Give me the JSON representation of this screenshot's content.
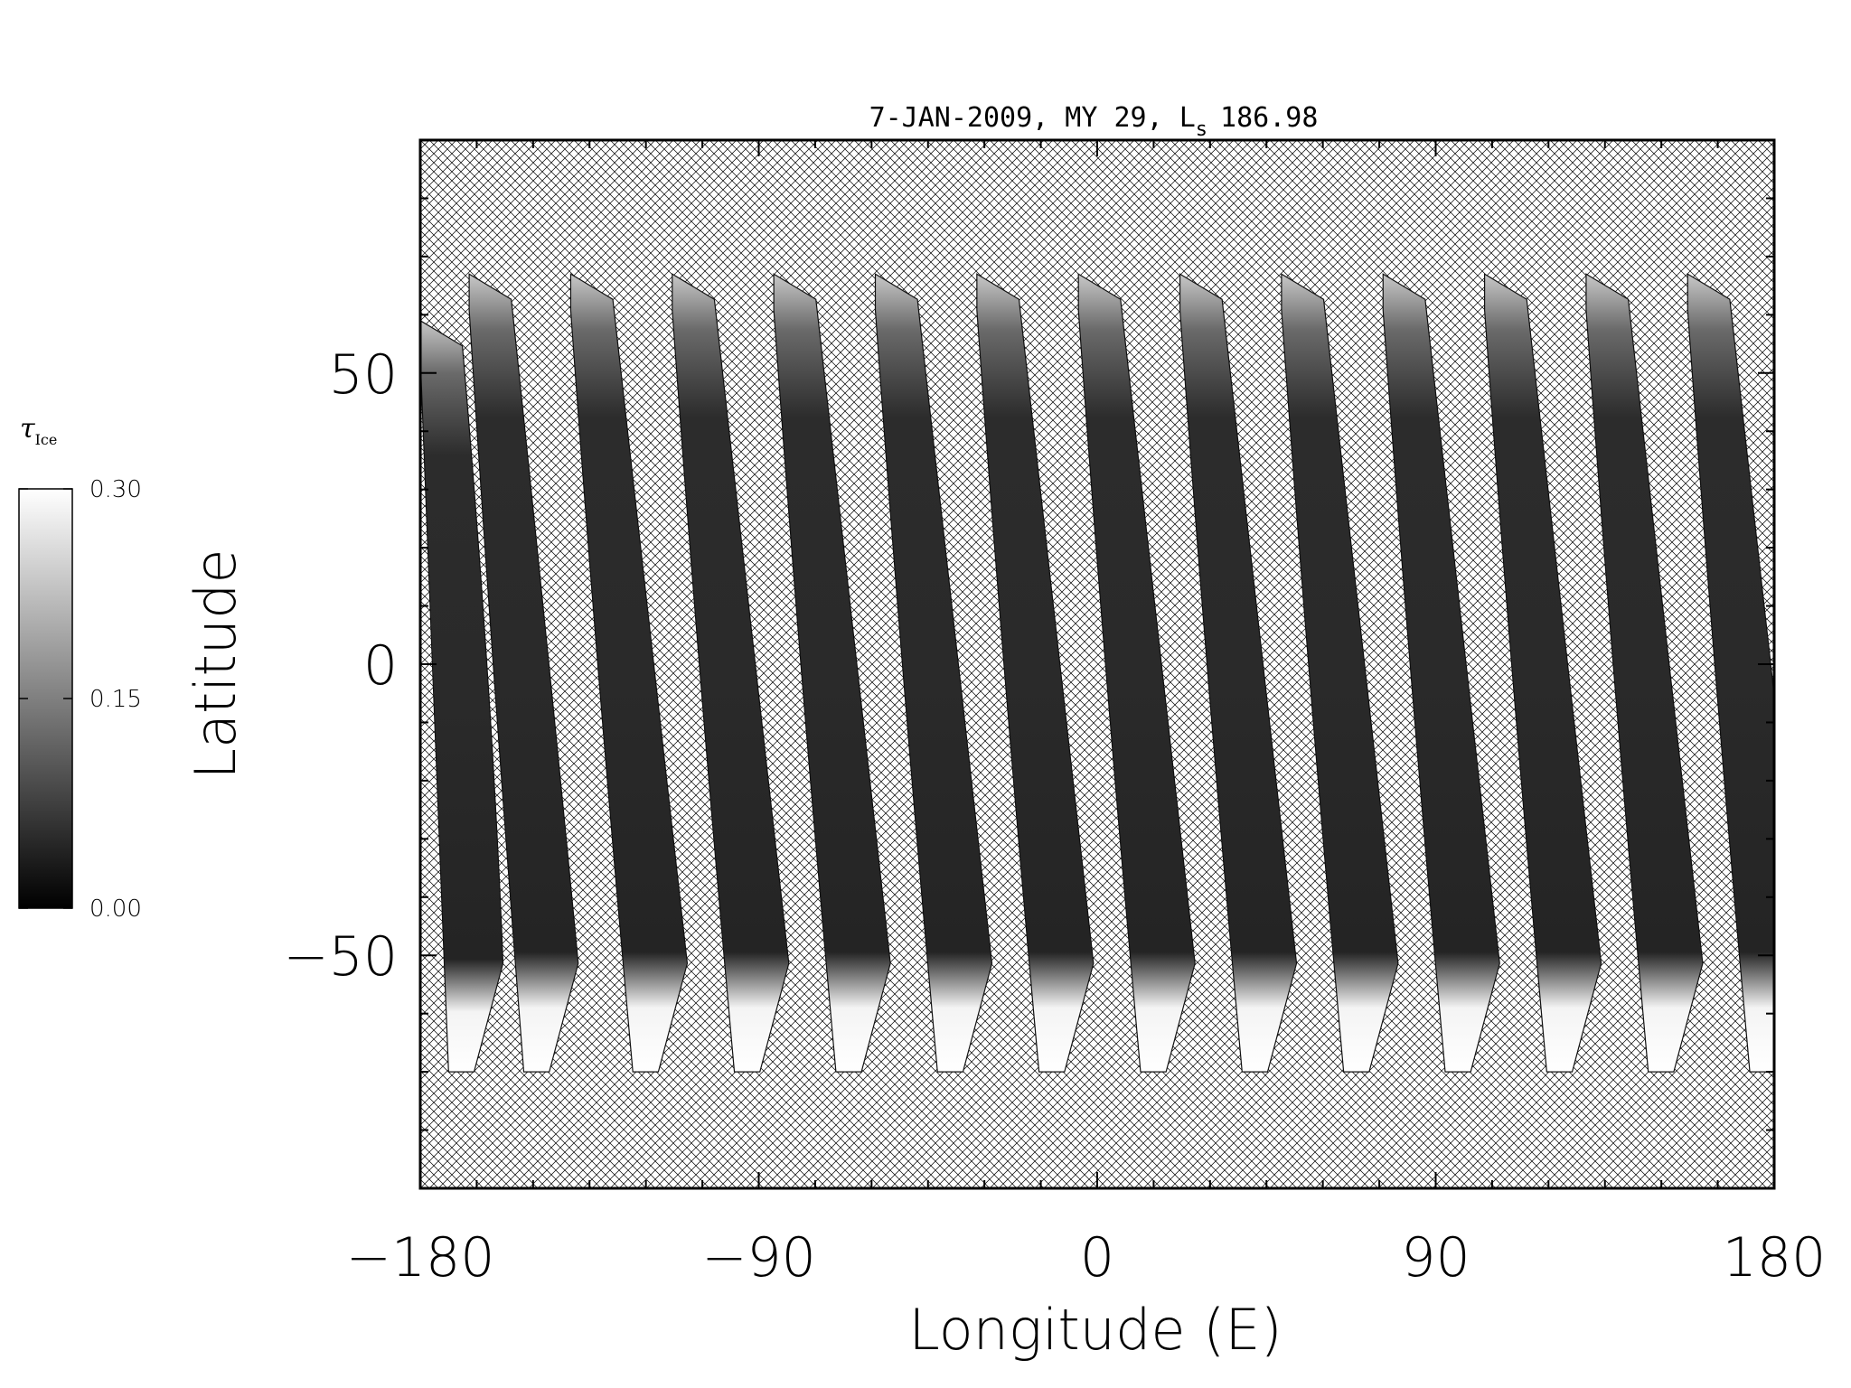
{
  "chart_data": {
    "type": "heatmap",
    "title": "7-JAN-2009, MY 29,  L",
    "title_sub": "s",
    "title_value": "186.98",
    "xlabel": "Longitude (E)",
    "ylabel": "Latitude",
    "xlim": [
      -180,
      180
    ],
    "ylim": [
      -90,
      90
    ],
    "xticks": [
      -180,
      -90,
      0,
      90,
      180
    ],
    "yticks": [
      50,
      0,
      -50
    ],
    "xtick_labels": [
      "−180",
      "−90",
      "0",
      "90",
      "180"
    ],
    "ytick_labels": [
      "50",
      "0",
      "−50"
    ],
    "no_data_pattern": "cross-hatch",
    "colorbar": {
      "label": "τ",
      "label_sub": "Ice",
      "min": 0.0,
      "max": 0.3,
      "ticks": [
        0.0,
        0.15,
        0.3
      ],
      "tick_labels": [
        "0.00",
        "0.15",
        "0.30"
      ],
      "colormap": "grayscale"
    },
    "swaths": [
      {
        "lon_top": -180,
        "lon_bottom": -172,
        "lat_top": 59,
        "lat_bottom": -70
      },
      {
        "lon_top": -167,
        "lon_bottom": -152,
        "lat_top": 67,
        "lat_bottom": -70
      },
      {
        "lon_top": -140,
        "lon_bottom": -123,
        "lat_top": 67,
        "lat_bottom": -70
      },
      {
        "lon_top": -113,
        "lon_bottom": -96,
        "lat_top": 67,
        "lat_bottom": -70
      },
      {
        "lon_top": -86,
        "lon_bottom": -69,
        "lat_top": 67,
        "lat_bottom": -70
      },
      {
        "lon_top": -59,
        "lon_bottom": -42,
        "lat_top": 67,
        "lat_bottom": -70
      },
      {
        "lon_top": -32,
        "lon_bottom": -15,
        "lat_top": 67,
        "lat_bottom": -70
      },
      {
        "lon_top": -5,
        "lon_bottom": 12,
        "lat_top": 67,
        "lat_bottom": -70
      },
      {
        "lon_top": 22,
        "lon_bottom": 39,
        "lat_top": 67,
        "lat_bottom": -70
      },
      {
        "lon_top": 49,
        "lon_bottom": 66,
        "lat_top": 67,
        "lat_bottom": -70
      },
      {
        "lon_top": 76,
        "lon_bottom": 93,
        "lat_top": 67,
        "lat_bottom": -70
      },
      {
        "lon_top": 103,
        "lon_bottom": 120,
        "lat_top": 67,
        "lat_bottom": -70
      },
      {
        "lon_top": 130,
        "lon_bottom": 147,
        "lat_top": 67,
        "lat_bottom": -70
      },
      {
        "lon_top": 157,
        "lon_bottom": 174,
        "lat_top": 67,
        "lat_bottom": -70
      }
    ],
    "high_ice_regions": [
      {
        "description": "south polar hood",
        "lat_range": [
          -70,
          -57
        ],
        "tau": 0.3
      },
      {
        "description": "north high latitudes",
        "lat_range": [
          45,
          67
        ],
        "tau": 0.15
      }
    ]
  }
}
